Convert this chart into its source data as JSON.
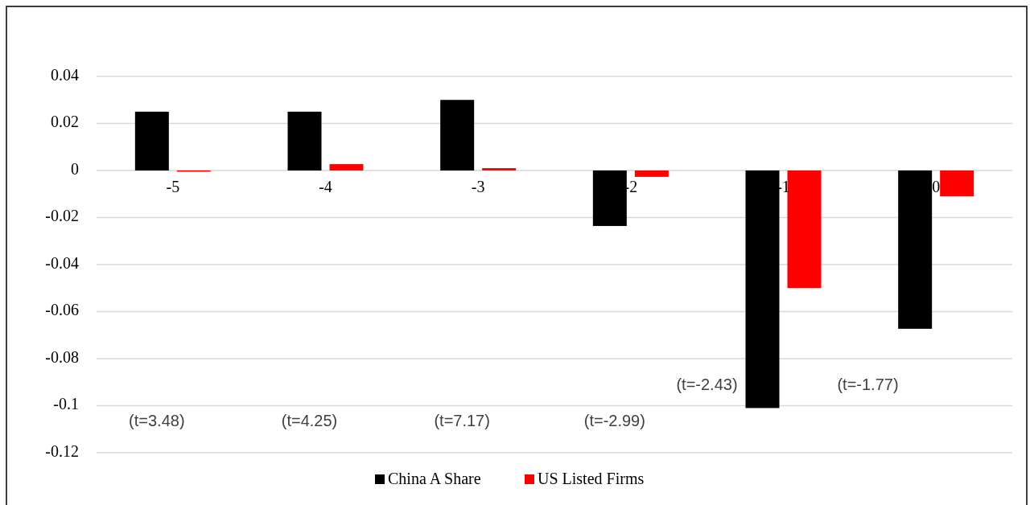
{
  "chart_data": {
    "type": "bar",
    "categories": [
      "-5",
      "-4",
      "-3",
      "-2",
      "-1",
      "0"
    ],
    "series": [
      {
        "name": "China A Share",
        "color": "#000000",
        "values": [
          0.025,
          0.025,
          0.03,
          -0.0236,
          -0.101,
          -0.0673
        ]
      },
      {
        "name": "US Listed Firms",
        "color": "#ff0000",
        "values": [
          -0.0005,
          0.0027,
          0.001,
          -0.0027,
          -0.05,
          -0.011
        ]
      }
    ],
    "ylim": [
      -0.12,
      0.04
    ],
    "yticks": [
      -0.12,
      -0.1,
      -0.08,
      -0.06,
      -0.04,
      -0.02,
      0,
      0.02,
      0.04
    ],
    "grid": "y",
    "legend": "bottom",
    "annotations": [
      "(t=3.48)",
      "(t=4.25)",
      "(t=7.17)",
      "(t=-2.99)",
      "(t=-2.43)",
      "(t=-1.77)"
    ]
  }
}
